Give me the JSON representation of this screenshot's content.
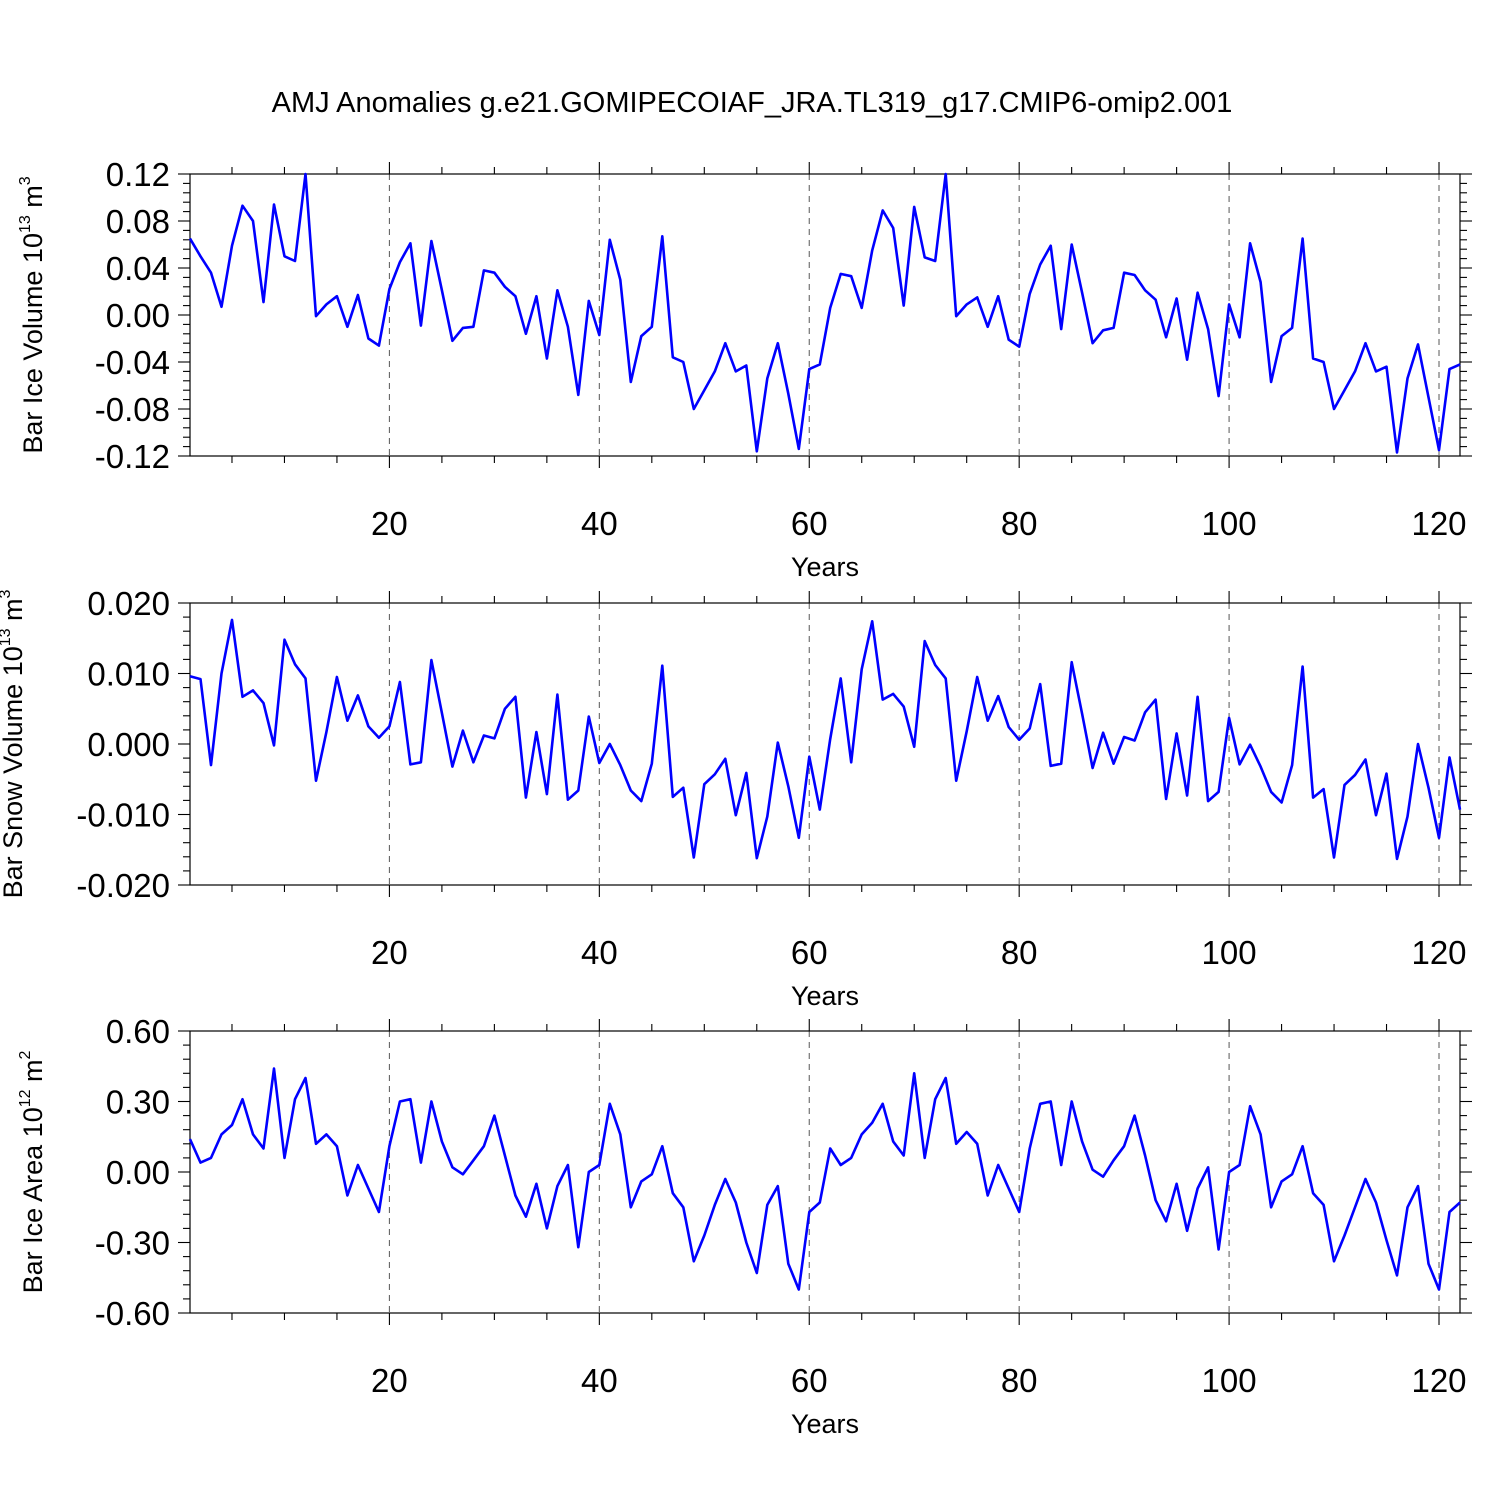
{
  "title": "AMJ Anomalies g.e21.GOMIPECOIAF_JRA.TL319_g17.CMIP6-omip2.001",
  "colors": {
    "series": "#0000ff",
    "grid": "#666666",
    "axes": "#000000"
  },
  "chart_data": [
    {
      "type": "line",
      "ylabel_main": "Bar Ice Volume 10",
      "ylabel_exp": "13",
      "ylabel_unit": " m",
      "ylabel_unit_exp": "3",
      "xlabel": "Years",
      "xlim": [
        1,
        122
      ],
      "ylim": [
        -0.12,
        0.12
      ],
      "y_ticks": [
        "-0.12",
        "-0.08",
        "-0.04",
        "0.00",
        "0.04",
        "0.08",
        "0.12"
      ],
      "y_tick_values": [
        -0.12,
        -0.08,
        -0.04,
        0.0,
        0.04,
        0.08,
        0.12
      ],
      "x_ticks": [
        "20",
        "40",
        "60",
        "80",
        "100",
        "120"
      ],
      "x_tick_values": [
        20,
        40,
        60,
        80,
        100,
        120
      ],
      "grid": "vertical dashed",
      "values": [
        0.065,
        0.05,
        0.036,
        0.007,
        0.059,
        0.093,
        0.08,
        0.011,
        0.094,
        0.05,
        0.046,
        0.12,
        -0.001,
        0.009,
        0.016,
        -0.01,
        0.017,
        -0.02,
        -0.026,
        0.022,
        0.045,
        0.061,
        -0.009,
        0.063,
        0.021,
        -0.022,
        -0.011,
        -0.01,
        0.038,
        0.036,
        0.024,
        0.016,
        -0.016,
        0.016,
        -0.037,
        0.021,
        -0.01,
        -0.068,
        0.012,
        -0.017,
        0.064,
        0.03,
        -0.057,
        -0.018,
        -0.01,
        0.067,
        -0.036,
        -0.04,
        -0.08,
        -0.064,
        -0.048,
        -0.024,
        -0.048,
        -0.043,
        -0.116,
        -0.054,
        -0.024,
        -0.067,
        -0.114,
        -0.046,
        -0.042,
        0.006,
        0.035,
        0.033,
        0.006,
        0.055,
        0.089,
        0.074,
        0.008,
        0.092,
        0.049,
        0.046,
        0.12,
        -0.001,
        0.009,
        0.015,
        -0.01,
        0.016,
        -0.021,
        -0.027,
        0.018,
        0.043,
        0.059,
        -0.012,
        0.06,
        0.019,
        -0.024,
        -0.013,
        -0.011,
        0.036,
        0.034,
        0.021,
        0.013,
        -0.019,
        0.014,
        -0.038,
        0.019,
        -0.012,
        -0.069,
        0.009,
        -0.019,
        0.061,
        0.028,
        -0.057,
        -0.018,
        -0.011,
        0.065,
        -0.037,
        -0.04,
        -0.08,
        -0.064,
        -0.048,
        -0.024,
        -0.048,
        -0.044,
        -0.117,
        -0.054,
        -0.025,
        -0.07,
        -0.115,
        -0.046,
        -0.042
      ]
    },
    {
      "type": "line",
      "ylabel_main": "Bar Snow Volume 10",
      "ylabel_exp": "13",
      "ylabel_unit": " m",
      "ylabel_unit_exp": "3",
      "xlabel": "Years",
      "xlim": [
        1,
        122
      ],
      "ylim": [
        -0.02,
        0.02
      ],
      "y_ticks": [
        "-0.020",
        "-0.010",
        "0.000",
        "0.010",
        "0.020"
      ],
      "y_tick_values": [
        -0.02,
        -0.01,
        0.0,
        0.01,
        0.02
      ],
      "x_ticks": [
        "20",
        "40",
        "60",
        "80",
        "100",
        "120"
      ],
      "x_tick_values": [
        20,
        40,
        60,
        80,
        100,
        120
      ],
      "grid": "vertical dashed",
      "values": [
        0.0096,
        0.0092,
        -0.003,
        0.01,
        0.0176,
        0.0067,
        0.0076,
        0.0058,
        -0.0002,
        0.0148,
        0.0113,
        0.0093,
        -0.0052,
        0.0017,
        0.0095,
        0.0033,
        0.0069,
        0.0025,
        0.0009,
        0.0025,
        0.0088,
        -0.0029,
        -0.0026,
        0.0119,
        0.0044,
        -0.0032,
        0.0019,
        -0.0026,
        0.0012,
        0.0008,
        0.005,
        0.0067,
        -0.0076,
        0.0017,
        -0.0071,
        0.007,
        -0.0079,
        -0.0066,
        0.0039,
        -0.0027,
        0.0,
        -0.003,
        -0.0066,
        -0.0081,
        -0.0028,
        0.0111,
        -0.0075,
        -0.0062,
        -0.0161,
        -0.0057,
        -0.0043,
        -0.0021,
        -0.0101,
        -0.0041,
        -0.0162,
        -0.0103,
        0.0002,
        -0.006,
        -0.0133,
        -0.0018,
        -0.0093,
        0.0007,
        0.0093,
        -0.0026,
        0.0106,
        0.0174,
        0.0063,
        0.0071,
        0.0053,
        -0.0004,
        0.0146,
        0.0112,
        0.0093,
        -0.0052,
        0.0018,
        0.0095,
        0.0033,
        0.0068,
        0.0024,
        0.0006,
        0.0022,
        0.0085,
        -0.0031,
        -0.0028,
        0.0116,
        0.0043,
        -0.0034,
        0.0016,
        -0.0028,
        0.001,
        0.0005,
        0.0045,
        0.0063,
        -0.0078,
        0.0015,
        -0.0073,
        0.0067,
        -0.0081,
        -0.0068,
        0.0037,
        -0.0029,
        -0.0001,
        -0.0032,
        -0.0068,
        -0.0083,
        -0.003,
        0.011,
        -0.0076,
        -0.0064,
        -0.0161,
        -0.0058,
        -0.0044,
        -0.0022,
        -0.0101,
        -0.0042,
        -0.0163,
        -0.0103,
        0.0,
        -0.0062,
        -0.0133,
        -0.0019,
        -0.0093
      ]
    },
    {
      "type": "line",
      "ylabel_main": "Bar Ice Area 10",
      "ylabel_exp": "12",
      "ylabel_unit": " m",
      "ylabel_unit_exp": "2",
      "xlabel": "Years",
      "xlim": [
        1,
        122
      ],
      "ylim": [
        -0.6,
        0.6
      ],
      "y_ticks": [
        "-0.60",
        "-0.30",
        "0.00",
        "0.30",
        "0.60"
      ],
      "y_tick_values": [
        -0.6,
        -0.3,
        0.0,
        0.3,
        0.6
      ],
      "x_ticks": [
        "20",
        "40",
        "60",
        "80",
        "100",
        "120"
      ],
      "x_tick_values": [
        20,
        40,
        60,
        80,
        100,
        120
      ],
      "grid": "vertical dashed",
      "values": [
        0.14,
        0.04,
        0.06,
        0.16,
        0.2,
        0.31,
        0.16,
        0.1,
        0.44,
        0.06,
        0.31,
        0.4,
        0.12,
        0.16,
        0.11,
        -0.1,
        0.03,
        -0.07,
        -0.17,
        0.11,
        0.3,
        0.31,
        0.04,
        0.3,
        0.13,
        0.02,
        -0.01,
        0.05,
        0.11,
        0.24,
        0.07,
        -0.1,
        -0.19,
        -0.05,
        -0.24,
        -0.06,
        0.03,
        -0.32,
        0.0,
        0.03,
        0.29,
        0.16,
        -0.15,
        -0.04,
        -0.01,
        0.11,
        -0.09,
        -0.15,
        -0.38,
        -0.27,
        -0.14,
        -0.03,
        -0.13,
        -0.3,
        -0.43,
        -0.14,
        -0.06,
        -0.39,
        -0.5,
        -0.17,
        -0.13,
        0.1,
        0.03,
        0.06,
        0.16,
        0.21,
        0.29,
        0.13,
        0.07,
        0.42,
        0.06,
        0.31,
        0.4,
        0.12,
        0.17,
        0.12,
        -0.1,
        0.03,
        -0.07,
        -0.17,
        0.1,
        0.29,
        0.3,
        0.03,
        0.3,
        0.13,
        0.01,
        -0.02,
        0.05,
        0.11,
        0.24,
        0.07,
        -0.12,
        -0.21,
        -0.05,
        -0.25,
        -0.07,
        0.02,
        -0.33,
        0.0,
        0.03,
        0.28,
        0.16,
        -0.15,
        -0.04,
        -0.01,
        0.11,
        -0.09,
        -0.14,
        -0.38,
        -0.27,
        -0.15,
        -0.03,
        -0.13,
        -0.29,
        -0.44,
        -0.15,
        -0.06,
        -0.39,
        -0.5,
        -0.17,
        -0.13
      ]
    }
  ]
}
